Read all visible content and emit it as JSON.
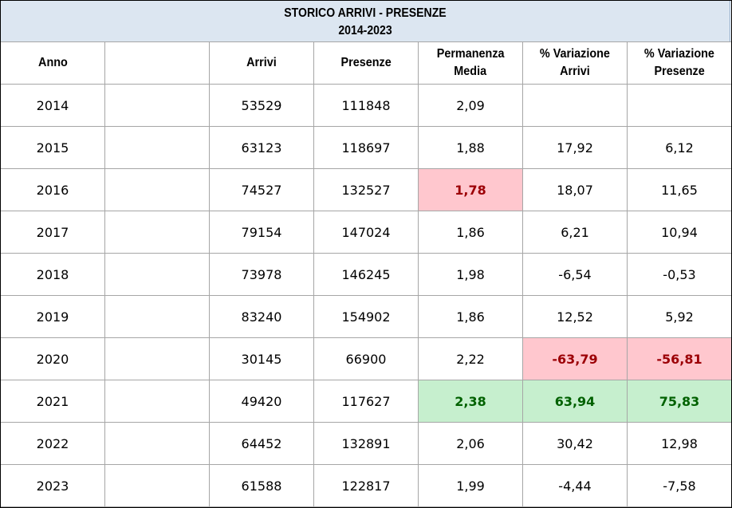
{
  "title": {
    "line1": "STORICO ARRIVI - PRESENZE",
    "line2": "2014-2023"
  },
  "headers": {
    "anno": "Anno",
    "blank": "",
    "arrivi": "Arrivi",
    "presenze": "Presenze",
    "permanenza_line1": "Permanenza",
    "permanenza_line2": "Media",
    "var_arrivi_line1": "% Variazione",
    "var_arrivi_line2": "Arrivi",
    "var_presenze_line1": "% Variazione",
    "var_presenze_line2": "Presenze"
  },
  "colors": {
    "header_band": "#dce6f1",
    "highlight_bad_bg": "#ffc7ce",
    "highlight_bad_text": "#9c0006",
    "highlight_good_bg": "#c6efce",
    "highlight_good_text": "#006100"
  },
  "rows": [
    {
      "anno": "2014",
      "arrivi": "53529",
      "presenze": "111848",
      "permanenza": "2,09",
      "var_arrivi": "",
      "var_presenze": ""
    },
    {
      "anno": "2015",
      "arrivi": "63123",
      "presenze": "118697",
      "permanenza": "1,88",
      "var_arrivi": "17,92",
      "var_presenze": "6,12"
    },
    {
      "anno": "2016",
      "arrivi": "74527",
      "presenze": "132527",
      "permanenza": "1,78",
      "var_arrivi": "18,07",
      "var_presenze": "11,65"
    },
    {
      "anno": "2017",
      "arrivi": "79154",
      "presenze": "147024",
      "permanenza": "1,86",
      "var_arrivi": "6,21",
      "var_presenze": "10,94"
    },
    {
      "anno": "2018",
      "arrivi": "73978",
      "presenze": "146245",
      "permanenza": "1,98",
      "var_arrivi": "-6,54",
      "var_presenze": "-0,53"
    },
    {
      "anno": "2019",
      "arrivi": "83240",
      "presenze": "154902",
      "permanenza": "1,86",
      "var_arrivi": "12,52",
      "var_presenze": "5,92"
    },
    {
      "anno": "2020",
      "arrivi": "30145",
      "presenze": "66900",
      "permanenza": "2,22",
      "var_arrivi": "-63,79",
      "var_presenze": "-56,81"
    },
    {
      "anno": "2021",
      "arrivi": "49420",
      "presenze": "117627",
      "permanenza": "2,38",
      "var_arrivi": "63,94",
      "var_presenze": "75,83"
    },
    {
      "anno": "2022",
      "arrivi": "64452",
      "presenze": "132891",
      "permanenza": "2,06",
      "var_arrivi": "30,42",
      "var_presenze": "12,98"
    },
    {
      "anno": "2023",
      "arrivi": "61588",
      "presenze": "122817",
      "permanenza": "1,99",
      "var_arrivi": "-4,44",
      "var_presenze": "-7,58"
    }
  ]
}
